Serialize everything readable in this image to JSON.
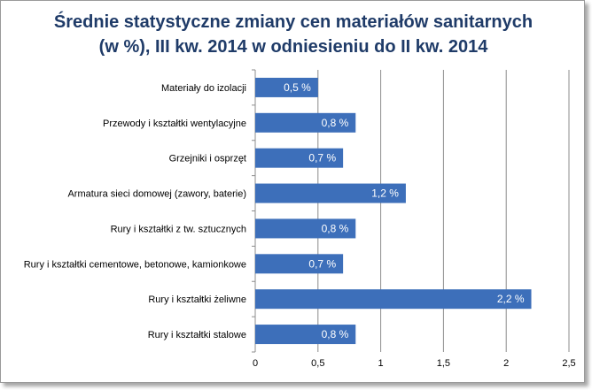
{
  "chart_data": {
    "type": "bar",
    "orientation": "horizontal",
    "title_line1": "Średnie statystyczne zmiany cen materiałów sanitarnych",
    "title_line2": "(w %), III kw. 2014 w odniesieniu do II kw. 2014",
    "categories": [
      "Materiały do izolacji",
      "Przewody i kształtki wentylacyjne",
      "Grzejniki i osprzęt",
      "Armatura sieci domowej (zawory, baterie)",
      "Rury i kształtki z tw. sztucznych",
      "Rury i kształtki cementowe, betonowe, kamionkowe",
      "Rury i kształtki żeliwne",
      "Rury i kształtki stalowe"
    ],
    "values": [
      0.5,
      0.8,
      0.7,
      1.2,
      0.8,
      0.7,
      2.2,
      0.8
    ],
    "data_labels": [
      "0,5 %",
      "0,8 %",
      "0,7 %",
      "1,2 %",
      "0,8 %",
      "0,7 %",
      "2,2 %",
      "0,8 %"
    ],
    "x_ticks": [
      0,
      0.5,
      1,
      1.5,
      2,
      2.5
    ],
    "x_tick_labels": [
      "0",
      "0,5",
      "1",
      "1,5",
      "2",
      "2,5"
    ],
    "xlim": [
      0,
      2.5
    ],
    "grid": true,
    "legend": "none",
    "bar_color": "#3d6fba",
    "title_color": "#1f3b68"
  }
}
